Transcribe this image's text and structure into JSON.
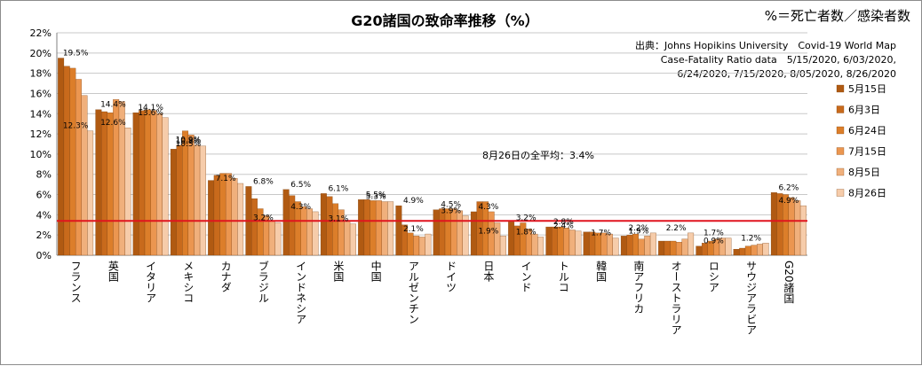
{
  "chart_data": {
    "type": "bar",
    "title": "G20諸国の致命率推移（%）",
    "formula": "%＝死亡者数／感染者数",
    "source": [
      "出典：Johns Hopikins University　Covid-19 World Map",
      "Case-Fatality Ratio data　5/15/2020, 6/03/2020,",
      "6/24/2020, 7/15/2020, 8/05/2020, 8/26/2020"
    ],
    "reference_line": {
      "value": 3.4,
      "label": "8月26日の全平均：3.4%",
      "color": "#e0141e"
    },
    "ylim": [
      0,
      22
    ],
    "yticks": [
      0,
      2,
      4,
      6,
      8,
      10,
      12,
      14,
      16,
      18,
      20,
      22
    ],
    "ytick_suffix": "%",
    "grid": true,
    "legend_position": "right",
    "categories": [
      "フランス",
      "英国",
      "イタリア",
      "メキシコ",
      "カナダ",
      "ブラジル",
      "インドネシア",
      "米国",
      "中国",
      "アルゼンチン",
      "ドイツ",
      "日本",
      "インド",
      "トルコ",
      "韓国",
      "南アフリカ",
      "オーストラリア",
      "ロシア",
      "サウジアラビア",
      "G20諸国"
    ],
    "series": [
      {
        "name": "5月15日",
        "color": "#b05a12",
        "values": [
          19.5,
          14.4,
          14.1,
          10.5,
          7.4,
          6.8,
          6.5,
          6.1,
          5.5,
          4.9,
          4.5,
          4.3,
          3.3,
          2.8,
          2.3,
          1.9,
          1.4,
          0.9,
          0.6,
          6.2
        ]
      },
      {
        "name": "6月3日",
        "color": "#c86a1c",
        "values": [
          18.7,
          14.2,
          14.3,
          10.9,
          7.9,
          5.6,
          5.9,
          5.8,
          5.5,
          3.0,
          4.6,
          5.3,
          2.9,
          2.8,
          2.3,
          2.0,
          1.4,
          1.2,
          0.7,
          6.1
        ]
      },
      {
        "name": "6月24日",
        "color": "#dc7e2a",
        "values": [
          18.5,
          14.1,
          14.4,
          12.3,
          8.1,
          4.6,
          5.3,
          5.1,
          5.4,
          2.2,
          4.6,
          5.3,
          3.2,
          2.8,
          2.2,
          2.1,
          1.4,
          1.4,
          0.9,
          6.0
        ]
      },
      {
        "name": "7月15日",
        "color": "#eb9650",
        "values": [
          17.4,
          15.4,
          14.3,
          11.9,
          8.1,
          3.9,
          4.8,
          4.5,
          5.4,
          1.9,
          4.6,
          4.3,
          2.6,
          2.7,
          2.2,
          1.6,
          1.3,
          1.6,
          1.0,
          5.7
        ]
      },
      {
        "name": "8月5日",
        "color": "#f0b07c",
        "values": [
          15.8,
          15.2,
          14.0,
          10.9,
          7.6,
          3.4,
          4.6,
          3.4,
          5.3,
          1.8,
          4.4,
          3.2,
          2.1,
          2.5,
          2.1,
          1.9,
          1.6,
          1.7,
          1.1,
          5.4
        ]
      },
      {
        "name": "8月26日",
        "color": "#f6ccaa",
        "values": [
          12.3,
          12.6,
          13.6,
          10.8,
          7.1,
          3.2,
          4.3,
          3.1,
          5.3,
          2.1,
          3.9,
          1.9,
          1.8,
          2.4,
          1.7,
          2.2,
          2.2,
          1.7,
          1.2,
          4.9
        ]
      }
    ],
    "data_labels": [
      {
        "text": "19.5%",
        "category": 0,
        "value": 19.5
      },
      {
        "text": "12.3%",
        "category": 0,
        "value": 12.3
      },
      {
        "text": "14.4%",
        "category": 1,
        "value": 14.4
      },
      {
        "text": "12.6%",
        "category": 1,
        "value": 12.6
      },
      {
        "text": "14.1%",
        "category": 2,
        "value": 14.1
      },
      {
        "text": "13.6%",
        "category": 2,
        "value": 13.6
      },
      {
        "text": "10.5%",
        "category": 3,
        "value": 10.5
      },
      {
        "text": "10.9%",
        "category": 3,
        "value": 10.9
      },
      {
        "text": "10.8%",
        "category": 3,
        "value": 10.8
      },
      {
        "text": "7.1%",
        "category": 4,
        "value": 7.1
      },
      {
        "text": "6.8%",
        "category": 5,
        "value": 6.8
      },
      {
        "text": "3.2%",
        "category": 5,
        "value": 3.2
      },
      {
        "text": "6.5%",
        "category": 6,
        "value": 6.5
      },
      {
        "text": "4.3%",
        "category": 6,
        "value": 4.3
      },
      {
        "text": "6.1%",
        "category": 7,
        "value": 6.1
      },
      {
        "text": "3.1%",
        "category": 7,
        "value": 3.1
      },
      {
        "text": "5.5%",
        "category": 8,
        "value": 5.5
      },
      {
        "text": "5.3%",
        "category": 8,
        "value": 5.3
      },
      {
        "text": "4.9%",
        "category": 9,
        "value": 4.9
      },
      {
        "text": "2.1%",
        "category": 9,
        "value": 2.1
      },
      {
        "text": "4.5%",
        "category": 10,
        "value": 4.5
      },
      {
        "text": "3.9%",
        "category": 10,
        "value": 3.9
      },
      {
        "text": "4.3%",
        "category": 11,
        "value": 4.3
      },
      {
        "text": "1.9%",
        "category": 11,
        "value": 1.9
      },
      {
        "text": "3.2%",
        "category": 12,
        "value": 3.2
      },
      {
        "text": "1.8%",
        "category": 12,
        "value": 1.8
      },
      {
        "text": "2.8%",
        "category": 13,
        "value": 2.8
      },
      {
        "text": "2.4%",
        "category": 13,
        "value": 2.4
      },
      {
        "text": "1.7%",
        "category": 14,
        "value": 1.7
      },
      {
        "text": "1.9%",
        "category": 15,
        "value": 1.9
      },
      {
        "text": "2.2%",
        "category": 15,
        "value": 2.2
      },
      {
        "text": "2.2%",
        "category": 16,
        "value": 2.2
      },
      {
        "text": "0.9%",
        "category": 17,
        "value": 0.9
      },
      {
        "text": "1.7%",
        "category": 17,
        "value": 1.7
      },
      {
        "text": "1.2%",
        "category": 18,
        "value": 1.2
      },
      {
        "text": "6.2%",
        "category": 19,
        "value": 6.2
      },
      {
        "text": "4.9%",
        "category": 19,
        "value": 4.9
      }
    ]
  }
}
